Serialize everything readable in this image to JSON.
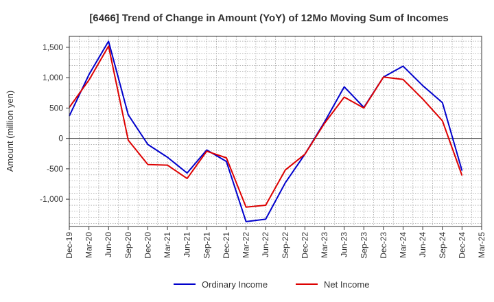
{
  "chart_data": {
    "type": "line",
    "title": "[6466]  Trend of Change in Amount (YoY) of 12Mo Moving Sum of Incomes",
    "xlabel": "",
    "ylabel": "Amount (million yen)",
    "ylim": [
      -1450,
      1680
    ],
    "yticks": [
      1500,
      1000,
      500,
      0,
      -500,
      -1000
    ],
    "ytick_labels": [
      "1,500",
      "1,000",
      "500",
      "0",
      "-500",
      "-1,000"
    ],
    "categories": [
      "Dec-19",
      "Mar-20",
      "Jun-20",
      "Sep-20",
      "Dec-20",
      "Mar-21",
      "Jun-21",
      "Sep-21",
      "Dec-21",
      "Mar-22",
      "Jun-22",
      "Sep-22",
      "Dec-22",
      "Mar-23",
      "Jun-23",
      "Sep-23",
      "Dec-23",
      "Mar-24",
      "Jun-24",
      "Sep-24",
      "Dec-24",
      "Mar-25"
    ],
    "grid": true,
    "legend_position": "bottom-center",
    "series": [
      {
        "name": "Ordinary Income",
        "color": "#0000cc",
        "values": [
          370,
          1050,
          1600,
          390,
          -100,
          -310,
          -570,
          -190,
          -380,
          -1370,
          -1330,
          -730,
          -260,
          270,
          850,
          510,
          1010,
          1190,
          870,
          590,
          -530,
          null
        ]
      },
      {
        "name": "Net Income",
        "color": "#dd0000",
        "values": [
          510,
          960,
          1520,
          -30,
          -430,
          -440,
          -660,
          -210,
          -320,
          -1130,
          -1100,
          -520,
          -260,
          250,
          680,
          500,
          1010,
          970,
          650,
          290,
          -610,
          null
        ]
      }
    ]
  }
}
